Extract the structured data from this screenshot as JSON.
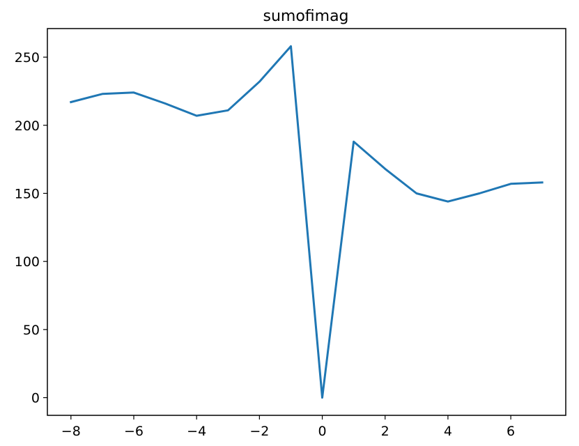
{
  "chart_data": {
    "type": "line",
    "title": "sumofimag",
    "xlabel": "",
    "ylabel": "",
    "xlim": [
      -8.75,
      7.75
    ],
    "ylim": [
      -13,
      271
    ],
    "xticks": [
      -8,
      -6,
      -4,
      -2,
      0,
      2,
      4,
      6
    ],
    "xtick_labels": [
      "−8",
      "−6",
      "−4",
      "−2",
      "0",
      "2",
      "4",
      "6"
    ],
    "yticks": [
      0,
      50,
      100,
      150,
      200,
      250
    ],
    "ytick_labels": [
      "0",
      "50",
      "100",
      "150",
      "200",
      "250"
    ],
    "grid": false,
    "legend": "none",
    "series": [
      {
        "color": "#1f77b4",
        "x": [
          -8,
          -7,
          -6,
          -5,
          -4,
          -3,
          -2,
          -1,
          0,
          1,
          2,
          3,
          4,
          5,
          6,
          7
        ],
        "y": [
          217,
          223,
          224,
          216,
          207,
          211,
          232,
          258,
          0,
          188,
          168,
          150,
          144,
          150,
          157,
          158
        ]
      }
    ]
  }
}
